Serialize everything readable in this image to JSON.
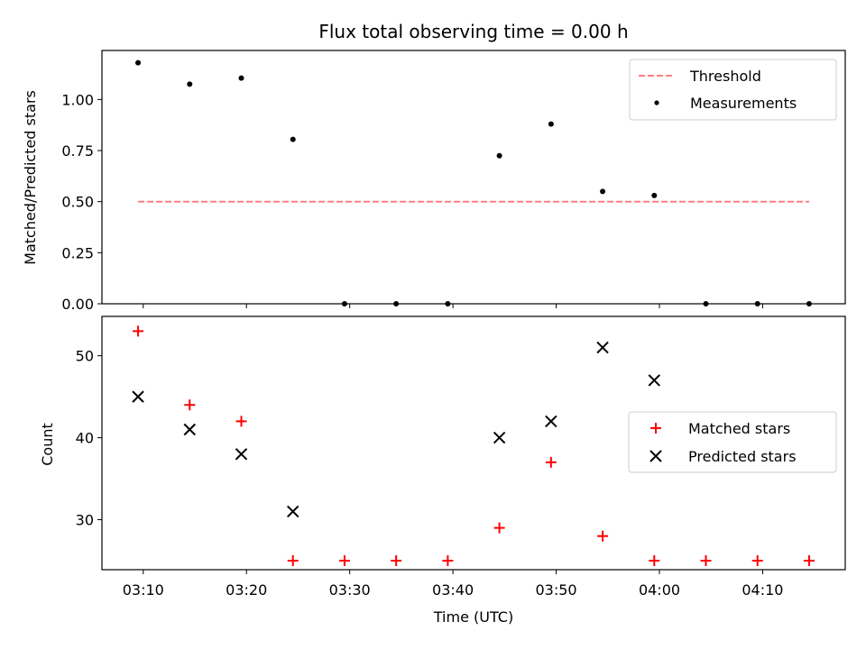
{
  "chart_data": [
    {
      "type": "scatter",
      "title": "Flux total observing time = 0.00 h",
      "ylabel": "Matched/Predicted stars",
      "xlabel": "",
      "ylim": [
        0,
        1.24
      ],
      "yticks": [
        0.0,
        0.25,
        0.5,
        0.75,
        1.0
      ],
      "ytick_labels": [
        "0.00",
        "0.25",
        "0.50",
        "0.75",
        "1.00"
      ],
      "legend": {
        "placement": "top-right"
      },
      "threshold": {
        "name": "Threshold",
        "value": 0.5,
        "x_start": "03:09:30",
        "x_end": "04:14:30",
        "color": "#ff7f7f",
        "style": "dashed"
      },
      "series": [
        {
          "name": "Measurements",
          "marker": "dot",
          "color": "#000000",
          "x": [
            "03:09:30",
            "03:14:30",
            "03:19:30",
            "03:24:30",
            "03:29:30",
            "03:34:30",
            "03:39:30",
            "03:44:30",
            "03:49:30",
            "03:54:30",
            "03:59:30",
            "04:04:30",
            "04:09:30",
            "04:14:30"
          ],
          "y": [
            1.18,
            1.075,
            1.105,
            0.805,
            0.0,
            0.0,
            0.0,
            0.725,
            0.88,
            0.55,
            0.53,
            0.0,
            0.0,
            0.0
          ]
        }
      ]
    },
    {
      "type": "scatter",
      "title": "",
      "ylabel": "Count",
      "xlabel": "Time (UTC)",
      "xlim": [
        "03:06:00",
        "04:18:00"
      ],
      "xticks": [
        "03:10",
        "03:20",
        "03:30",
        "03:40",
        "03:50",
        "04:00",
        "04:10"
      ],
      "ylim": [
        23.9,
        54.8
      ],
      "yticks": [
        30,
        40,
        50
      ],
      "ytick_labels": [
        "30",
        "40",
        "50"
      ],
      "legend": {
        "placement": "center-right"
      },
      "series": [
        {
          "name": "Matched stars",
          "marker": "plus",
          "color": "#ff0000",
          "x": [
            "03:09:30",
            "03:14:30",
            "03:19:30",
            "03:24:30",
            "03:29:30",
            "03:34:30",
            "03:39:30",
            "03:44:30",
            "03:49:30",
            "03:54:30",
            "03:59:30",
            "04:04:30",
            "04:09:30",
            "04:14:30"
          ],
          "y": [
            53,
            44,
            42,
            25,
            25,
            25,
            25,
            29,
            37,
            28,
            25,
            25,
            25,
            25
          ]
        },
        {
          "name": "Predicted stars",
          "marker": "x",
          "color": "#000000",
          "x": [
            "03:09:30",
            "03:14:30",
            "03:19:30",
            "03:24:30",
            "03:44:30",
            "03:49:30",
            "03:54:30",
            "03:59:30"
          ],
          "y": [
            45,
            41,
            38,
            31,
            40,
            42,
            51,
            47
          ]
        }
      ]
    }
  ]
}
